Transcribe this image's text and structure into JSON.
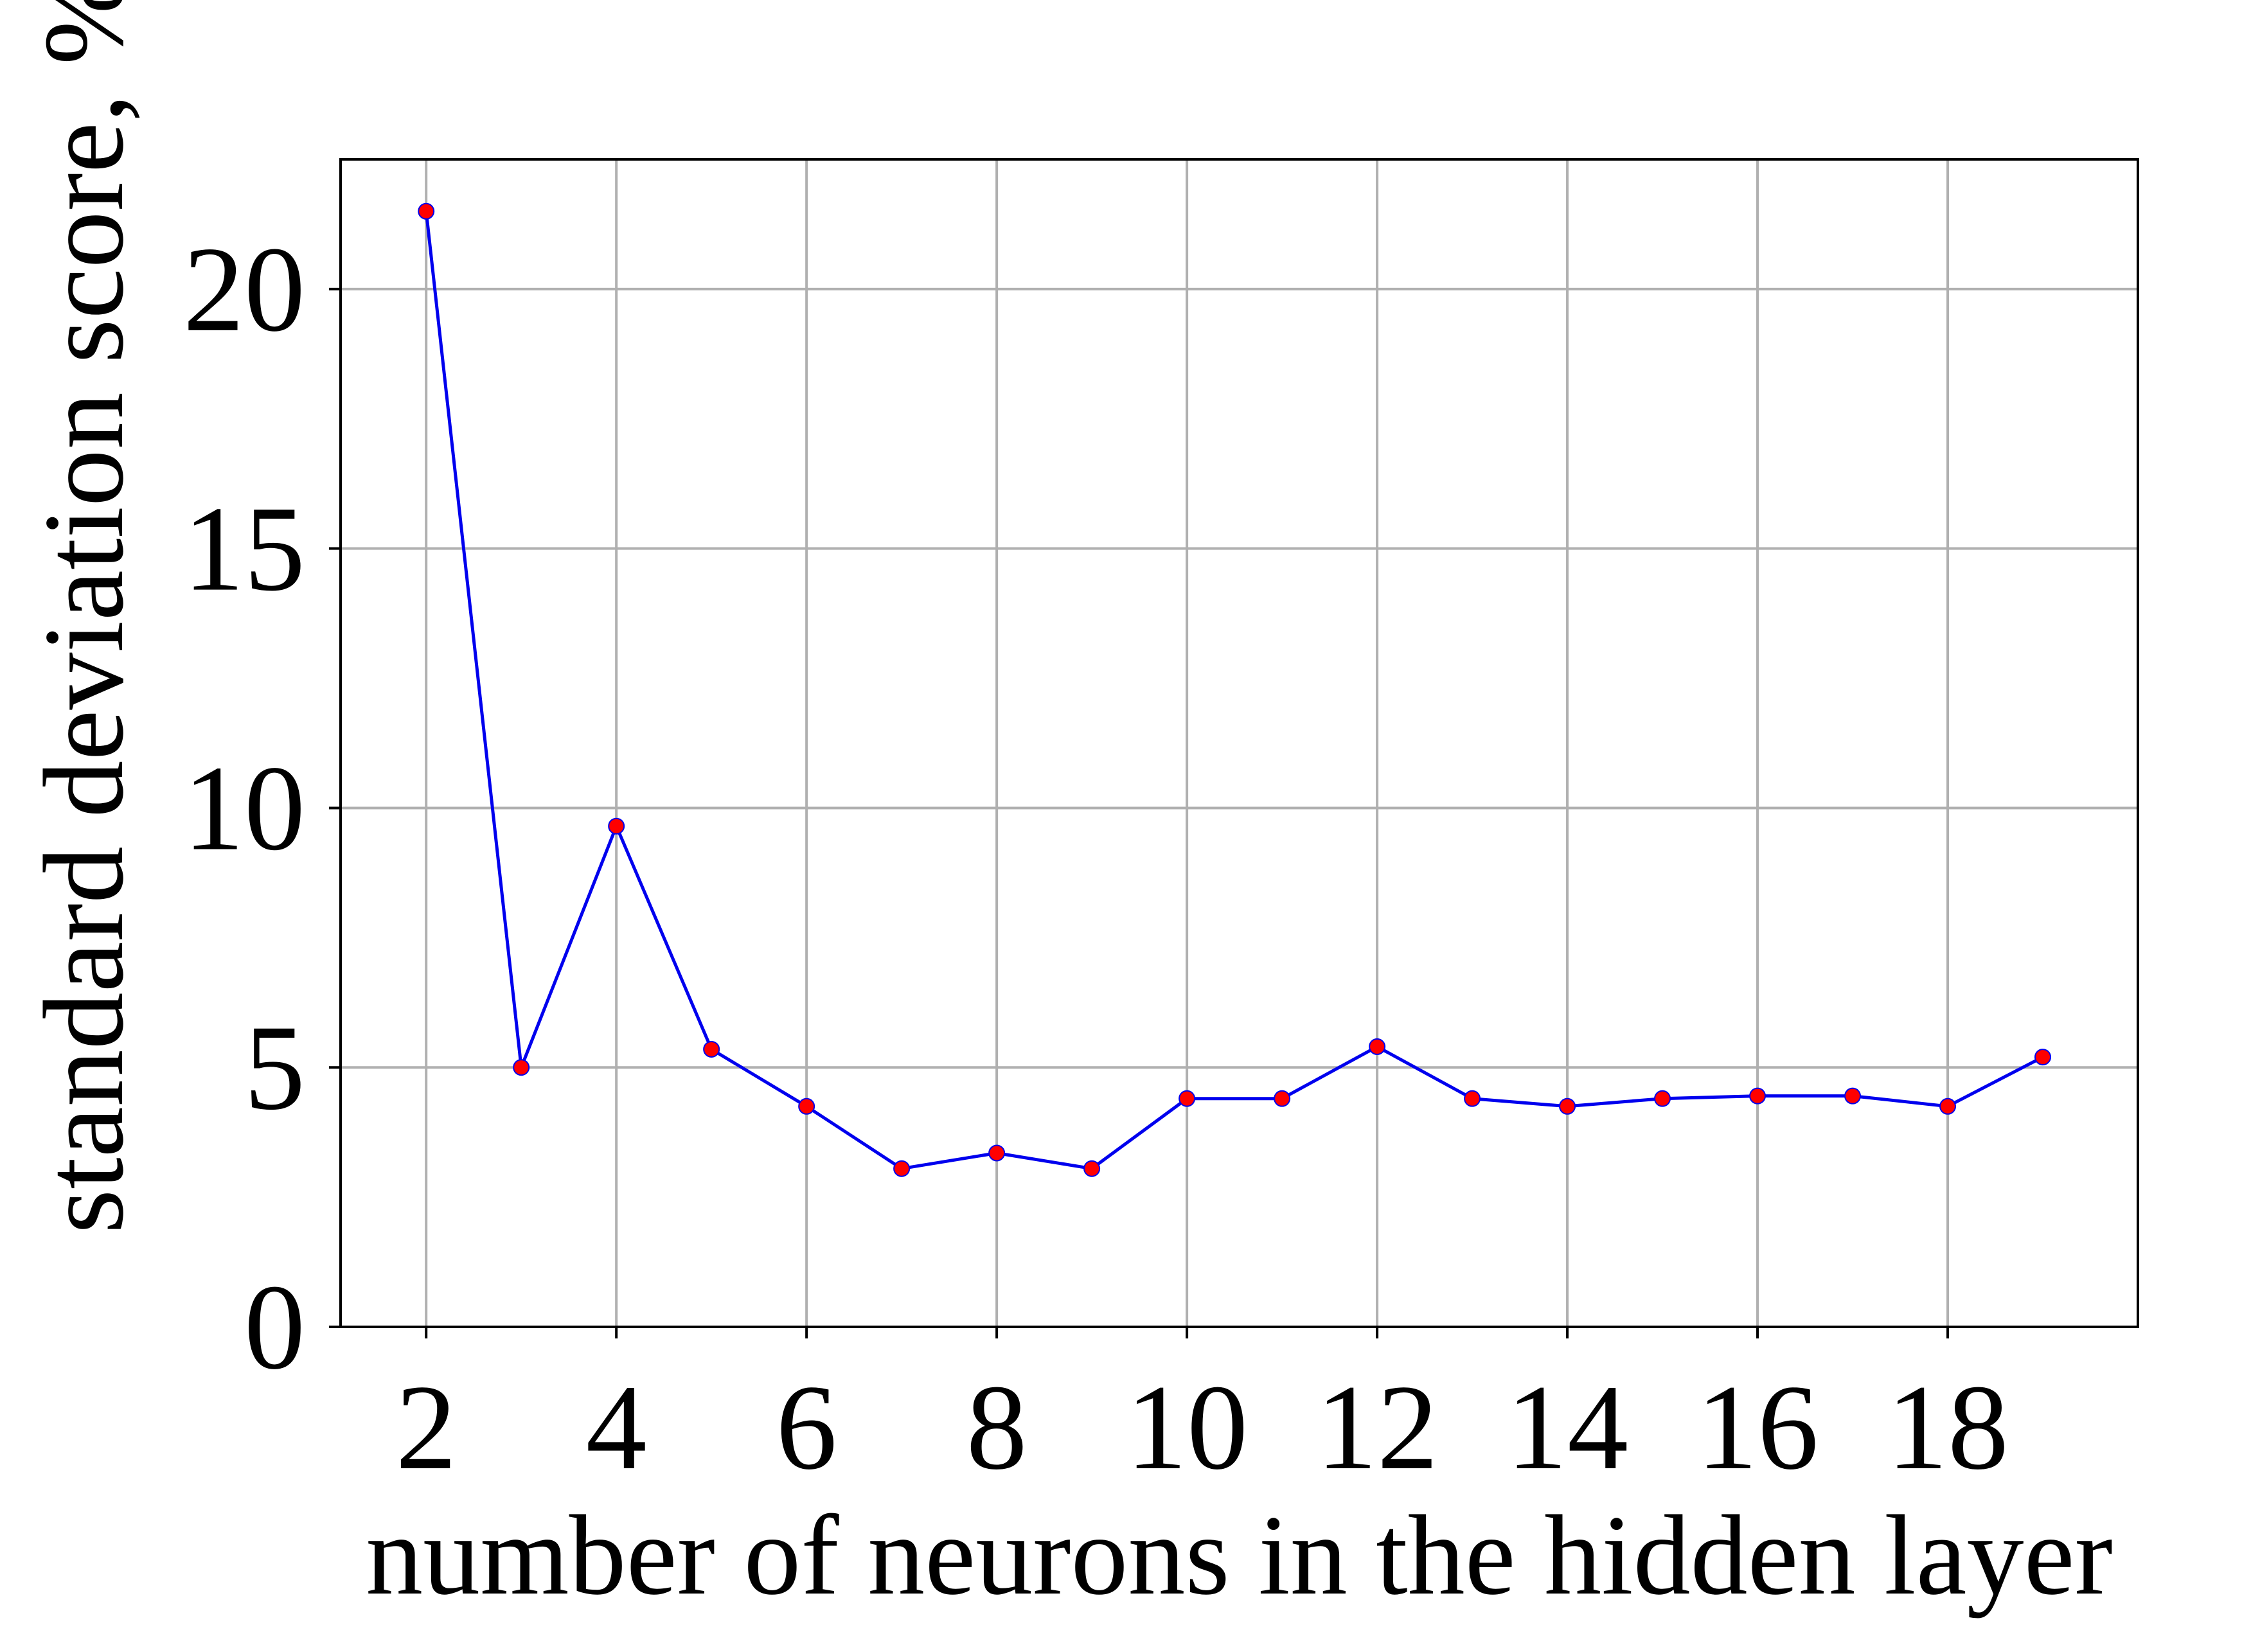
{
  "chart_data": {
    "type": "line",
    "title": "",
    "xlabel": "number of neurons in the hidden layer",
    "ylabel": "standard deviation score, %",
    "x": [
      2,
      3,
      4,
      5,
      6,
      7,
      8,
      9,
      10,
      11,
      12,
      13,
      14,
      15,
      16,
      17,
      18,
      19
    ],
    "series": [
      {
        "values": [
          21.5,
          5.0,
          9.65,
          5.35,
          4.25,
          3.05,
          3.35,
          3.05,
          4.4,
          4.4,
          5.4,
          4.4,
          4.25,
          4.4,
          4.45,
          4.45,
          4.25,
          5.2
        ],
        "line_color": "#0000ee",
        "marker_color": "#ff0000"
      }
    ],
    "xlim": [
      1.1,
      20.0
    ],
    "ylim": [
      0,
      22.5
    ],
    "xticks": [
      "2",
      "4",
      "6",
      "8",
      "10",
      "12",
      "14",
      "16",
      "18"
    ],
    "xtick_values": [
      2,
      4,
      6,
      8,
      10,
      12,
      14,
      16,
      18
    ],
    "yticks": [
      "0",
      "5",
      "10",
      "15",
      "20"
    ],
    "ytick_values": [
      0,
      5,
      10,
      15,
      20
    ],
    "grid": true,
    "grid_color": "#b0b0b0",
    "legend": "none"
  }
}
